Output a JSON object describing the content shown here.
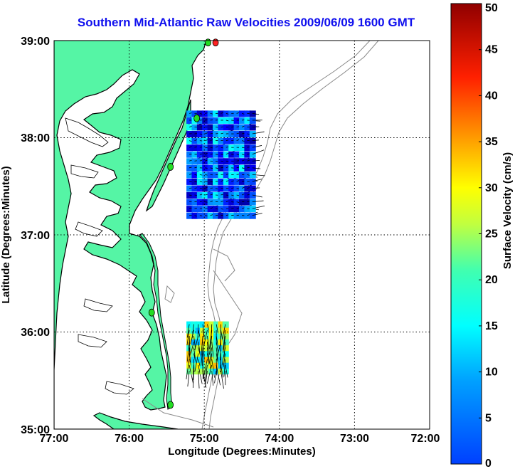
{
  "title": "Southern Mid-Atlantic Raw Velocities 2009/06/09 1600 GMT",
  "xlabel": "Longitude (Degrees:Minutes)",
  "ylabel": "Latitude (Degrees:Minutes)",
  "colorbar_label": "Surface Velocity (cm/s)",
  "x_ticks": [
    "77:00",
    "76:00",
    "75:00",
    "74:00",
    "73:00",
    "72:00"
  ],
  "y_ticks": [
    "39:00",
    "38:00",
    "37:00",
    "36:00",
    "35:00"
  ],
  "colorbar_ticks": [
    "0",
    "5",
    "10",
    "15",
    "20",
    "25",
    "30",
    "35",
    "40",
    "45",
    "50"
  ],
  "colors": {
    "land": "#55f5a5",
    "coast": "#000000",
    "bathymetry": "#888888",
    "title": "#1010ee",
    "station": "#22dd22",
    "station_alt": "#ff2222"
  },
  "chart_data": {
    "type": "map",
    "title": "Southern Mid-Atlantic Raw Velocities 2009/06/09 1600 GMT",
    "xlabel": "Longitude (Degrees:Minutes)",
    "ylabel": "Latitude (Degrees:Minutes)",
    "xlim": [
      -77.0,
      -72.0
    ],
    "ylim": [
      35.0,
      39.0
    ],
    "grid": true,
    "colorbar": {
      "label": "Surface Velocity (cm/s)",
      "range": [
        0,
        50
      ],
      "colormap": "jet"
    },
    "stations": [
      {
        "lon": -74.85,
        "lat": 38.98,
        "color": "red"
      },
      {
        "lon": -74.95,
        "lat": 38.98,
        "color": "green"
      },
      {
        "lon": -75.1,
        "lat": 38.2,
        "color": "green"
      },
      {
        "lon": -75.45,
        "lat": 37.7,
        "color": "green"
      },
      {
        "lon": -75.7,
        "lat": 36.2,
        "color": "green"
      },
      {
        "lon": -75.45,
        "lat": 35.25,
        "color": "green"
      }
    ],
    "velocity_regions": [
      {
        "name": "north",
        "lon_range": [
          -75.2,
          -74.3
        ],
        "lat_range": [
          37.2,
          38.3
        ],
        "speed_range_cm_s": [
          2,
          20
        ],
        "flow": "eastward"
      },
      {
        "name": "south",
        "lon_range": [
          -75.2,
          -74.7
        ],
        "lat_range": [
          35.6,
          36.1
        ],
        "speed_range_cm_s": [
          15,
          35
        ],
        "flow": "southward"
      }
    ]
  }
}
